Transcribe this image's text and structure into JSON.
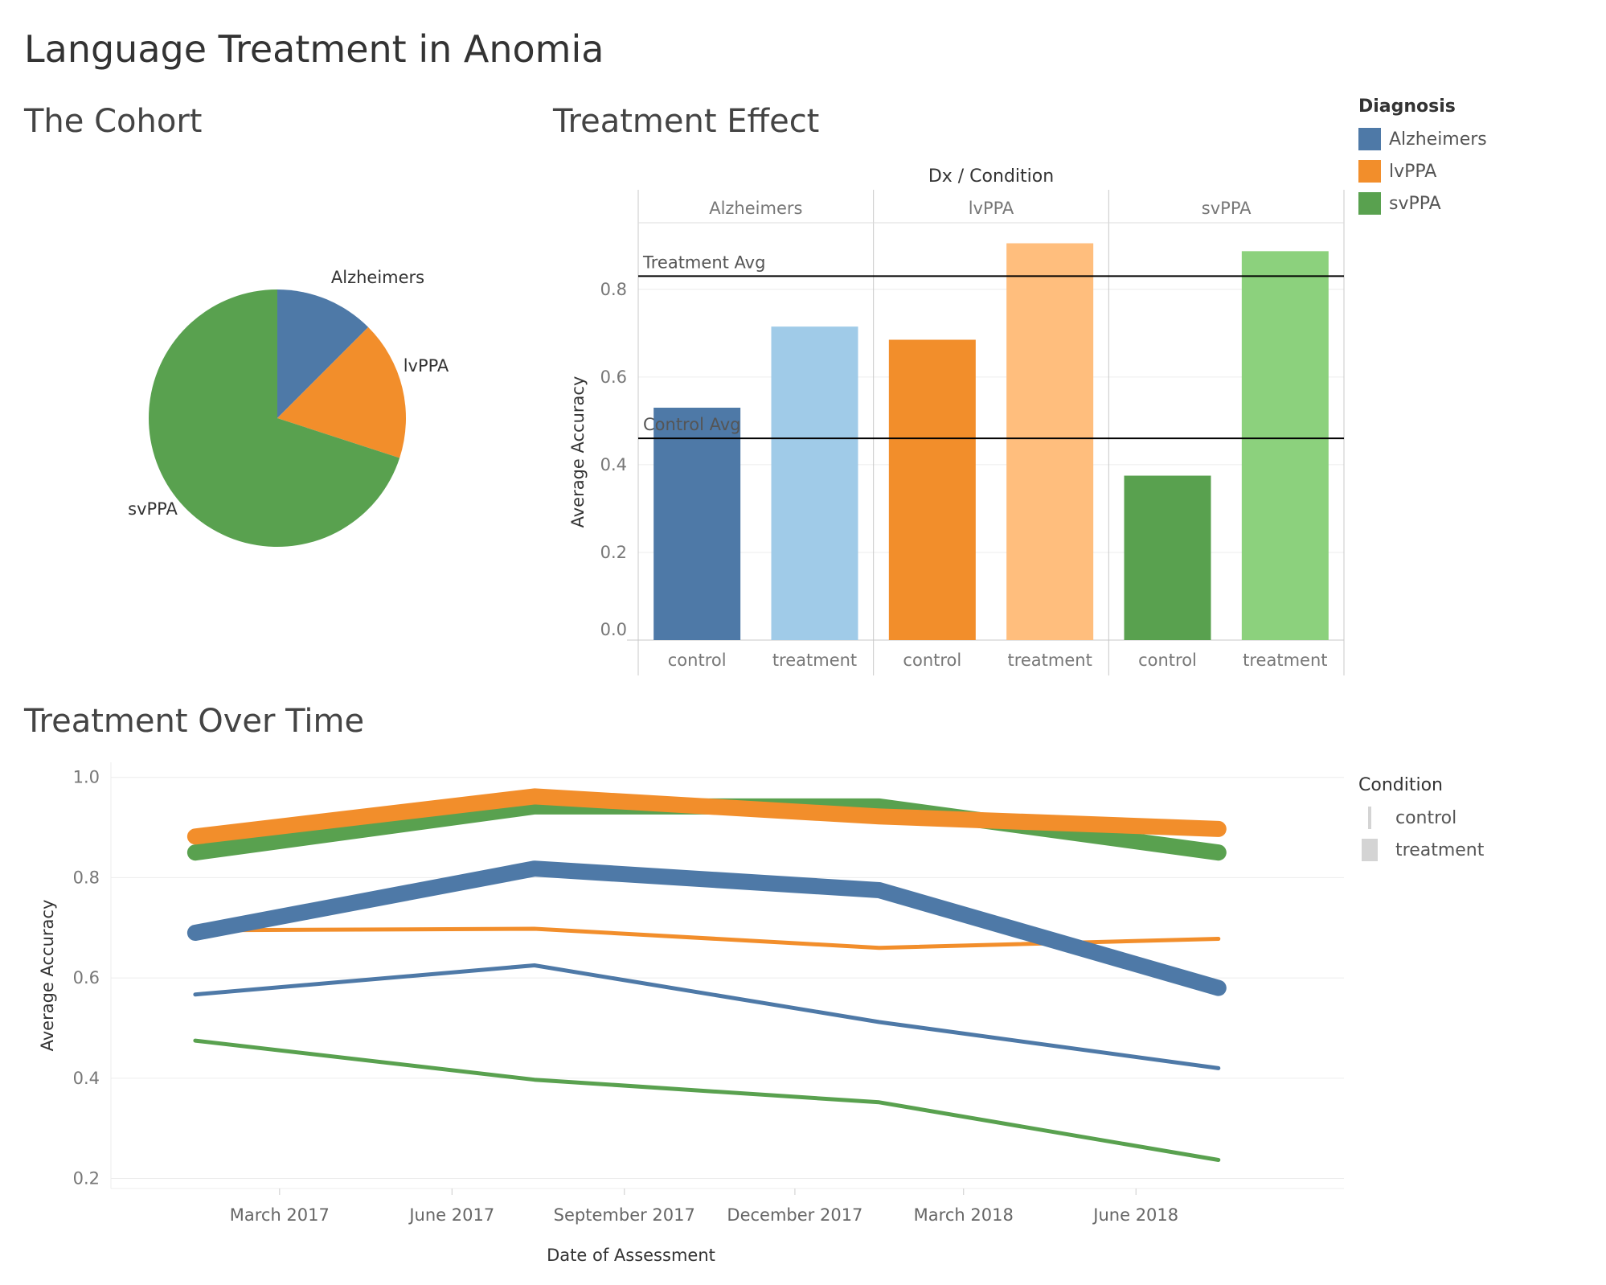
{
  "title": "Language Treatment in Anomia",
  "sections": {
    "cohort": "The Cohort",
    "effect": "Treatment Effect",
    "time": "Treatment Over Time"
  },
  "colors": {
    "Alzheimers": "#4e79a7",
    "lvPPA": "#f28e2b",
    "svPPA": "#59a14f",
    "Alzheimers_light": "#a0cbe8",
    "lvPPA_light": "#ffbe7d",
    "svPPA_light": "#8cd17d"
  },
  "legend_diagnosis": {
    "title": "Diagnosis",
    "items": [
      "Alzheimers",
      "lvPPA",
      "svPPA"
    ]
  },
  "legend_condition": {
    "title": "Condition",
    "items": [
      "control",
      "treatment"
    ]
  },
  "chart_data": [
    {
      "type": "pie",
      "labels": [
        "Alzheimers",
        "lvPPA",
        "svPPA"
      ],
      "values": [
        12.5,
        17.5,
        70
      ]
    },
    {
      "type": "bar",
      "header": "Dx / Condition",
      "groups": [
        "Alzheimers",
        "lvPPA",
        "svPPA"
      ],
      "categories": [
        "control",
        "treatment"
      ],
      "ylabel": "Average Accuracy",
      "ylim": [
        0,
        0.95
      ],
      "yticks": [
        "0.0",
        "0.2",
        "0.4",
        "0.6",
        "0.8"
      ],
      "values": {
        "Alzheimers": {
          "control": 0.53,
          "treatment": 0.715
        },
        "lvPPA": {
          "control": 0.685,
          "treatment": 0.905
        },
        "svPPA": {
          "control": 0.375,
          "treatment": 0.887
        }
      },
      "reference_lines": [
        {
          "label": "Treatment Avg",
          "value": 0.83
        },
        {
          "label": "Control Avg",
          "value": 0.46
        }
      ]
    },
    {
      "type": "line",
      "xlabel": "Date of Assessment",
      "ylabel": "Average Accuracy",
      "ylim": [
        0.18,
        1.03
      ],
      "yticks": [
        "0.2",
        "0.4",
        "0.6",
        "0.8",
        "1.0"
      ],
      "xticks": [
        "March 2017",
        "June 2017",
        "September 2017",
        "December 2017",
        "March 2018",
        "June 2018"
      ],
      "x": [
        "2017-01-15",
        "2017-07-15",
        "2018-01-15",
        "2018-07-15"
      ],
      "series": [
        {
          "dx": "Alzheimers",
          "condition": "control",
          "values": [
            0.567,
            0.625,
            0.512,
            0.42
          ]
        },
        {
          "dx": "Alzheimers",
          "condition": "treatment",
          "values": [
            0.69,
            0.818,
            0.775,
            0.58
          ]
        },
        {
          "dx": "lvPPA",
          "condition": "control",
          "values": [
            0.695,
            0.698,
            0.66,
            0.678
          ]
        },
        {
          "dx": "lvPPA",
          "condition": "treatment",
          "values": [
            0.882,
            0.962,
            0.922,
            0.897
          ]
        },
        {
          "dx": "svPPA",
          "condition": "control",
          "values": [
            0.475,
            0.397,
            0.352,
            0.237
          ]
        },
        {
          "dx": "svPPA",
          "condition": "treatment",
          "values": [
            0.85,
            0.942,
            0.942,
            0.85
          ]
        }
      ]
    }
  ]
}
